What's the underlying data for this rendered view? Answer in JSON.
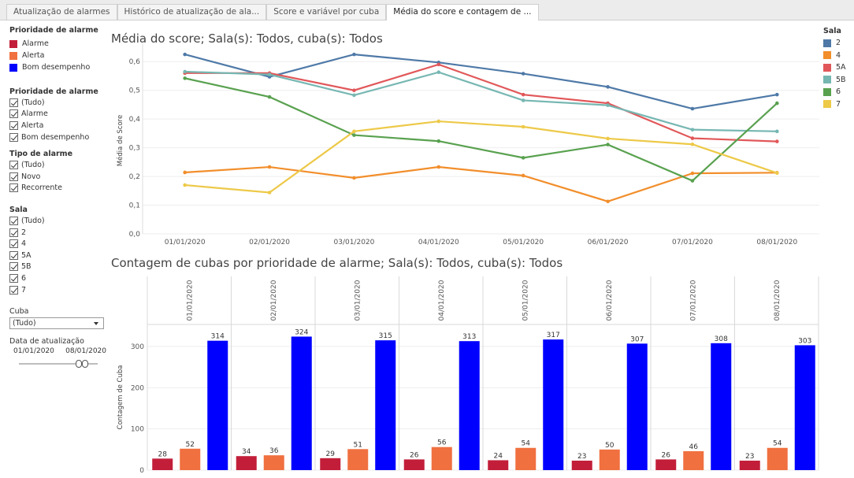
{
  "tabs": [
    {
      "label": "Atualização de alarmes",
      "active": false
    },
    {
      "label": "Histórico de atualização de ala...",
      "active": false
    },
    {
      "label": "Score e variável por cuba",
      "active": false
    },
    {
      "label": "Média do score e contagem de ...",
      "active": true
    }
  ],
  "sidebar": {
    "priority_legend": {
      "title": "Prioridade de alarme",
      "items": [
        {
          "label": "Alarme",
          "color": "#c21e3a"
        },
        {
          "label": "Alerta",
          "color": "#f07040"
        },
        {
          "label": "Bom desempenho",
          "color": "#0000ff"
        }
      ]
    },
    "priority_filter": {
      "title": "Prioridade de alarme",
      "items": [
        "(Tudo)",
        "Alarme",
        "Alerta",
        "Bom desempenho"
      ]
    },
    "type_filter": {
      "title": "Tipo de alarme",
      "items": [
        "(Tudo)",
        "Novo",
        "Recorrente"
      ]
    },
    "sala_filter": {
      "title": "Sala",
      "items": [
        "(Tudo)",
        "2",
        "4",
        "5A",
        "5B",
        "6",
        "7"
      ]
    },
    "cuba": {
      "title": "Cuba",
      "value": "(Tudo)"
    },
    "date_range": {
      "title": "Data de atualização",
      "start": "01/01/2020",
      "end": "08/01/2020"
    }
  },
  "sala_legend": {
    "title": "Sala",
    "items": [
      {
        "label": "2",
        "color": "#4e79a7"
      },
      {
        "label": "4",
        "color": "#f28e2b"
      },
      {
        "label": "5A",
        "color": "#e15759"
      },
      {
        "label": "5B",
        "color": "#76b7b2"
      },
      {
        "label": "6",
        "color": "#59a14f"
      },
      {
        "label": "7",
        "color": "#edc948"
      }
    ]
  },
  "chart_data": [
    {
      "type": "line",
      "title": "Média do score; Sala(s): Todos, cuba(s): Todos",
      "ylabel": "Média de Score",
      "xlabel": "",
      "x": [
        "01/01/2020",
        "02/01/2020",
        "03/01/2020",
        "04/01/2020",
        "05/01/2020",
        "06/01/2020",
        "07/01/2020",
        "08/01/2020"
      ],
      "ylim": [
        0,
        0.65
      ],
      "yticks": [
        "0,0",
        "0,1",
        "0,2",
        "0,3",
        "0,4",
        "0,5",
        "0,6"
      ],
      "grid": true,
      "legend": "right",
      "series": [
        {
          "name": "2",
          "color": "#4e79a7",
          "values": [
            0.625,
            0.547,
            0.625,
            0.597,
            0.558,
            0.512,
            0.436,
            0.485
          ]
        },
        {
          "name": "4",
          "color": "#f28e2b",
          "values": [
            0.214,
            0.233,
            0.195,
            0.233,
            0.203,
            0.113,
            0.211,
            0.213
          ]
        },
        {
          "name": "5A",
          "color": "#e15759",
          "values": [
            0.56,
            0.56,
            0.5,
            0.59,
            0.485,
            0.455,
            0.333,
            0.322
          ]
        },
        {
          "name": "5B",
          "color": "#76b7b2",
          "values": [
            0.565,
            0.555,
            0.483,
            0.563,
            0.465,
            0.448,
            0.363,
            0.357
          ]
        },
        {
          "name": "6",
          "color": "#59a14f",
          "values": [
            0.542,
            0.477,
            0.344,
            0.323,
            0.265,
            0.311,
            0.185,
            0.455
          ]
        },
        {
          "name": "7",
          "color": "#edc948",
          "values": [
            0.17,
            0.144,
            0.357,
            0.392,
            0.373,
            0.332,
            0.312,
            0.212
          ]
        }
      ]
    },
    {
      "type": "bar",
      "title": "Contagem de cubas por prioridade de alarme;  Sala(s): Todos, cuba(s): Todos",
      "ylabel": "Contagem de Cuba",
      "xlabel": "",
      "categories": [
        "01/01/2020",
        "02/01/2020",
        "03/01/2020",
        "04/01/2020",
        "05/01/2020",
        "06/01/2020",
        "07/01/2020",
        "08/01/2020"
      ],
      "ylim": [
        0,
        350
      ],
      "yticks": [
        "0",
        "100",
        "200",
        "300"
      ],
      "series": [
        {
          "name": "Alarme",
          "color": "#c21e3a",
          "values": [
            28,
            34,
            29,
            26,
            24,
            23,
            26,
            23
          ]
        },
        {
          "name": "Alerta",
          "color": "#f07040",
          "values": [
            52,
            36,
            51,
            56,
            54,
            50,
            46,
            54
          ]
        },
        {
          "name": "Bom desempenho",
          "color": "#0000ff",
          "values": [
            314,
            324,
            315,
            313,
            317,
            307,
            308,
            303
          ]
        }
      ]
    }
  ]
}
